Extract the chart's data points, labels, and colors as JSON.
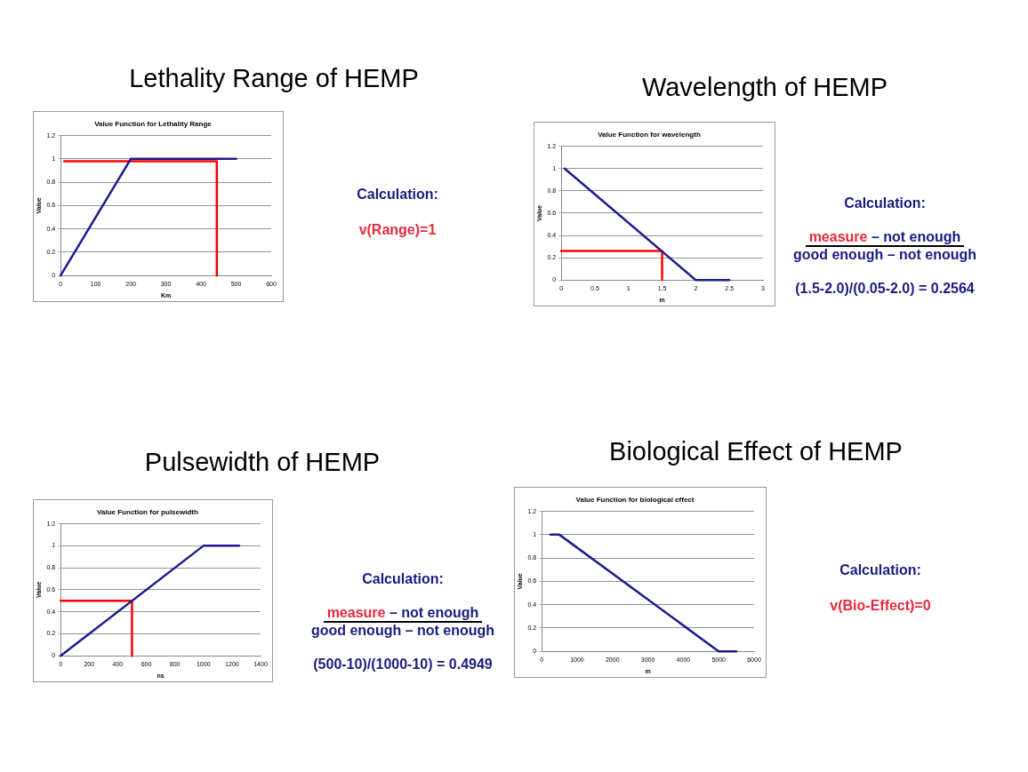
{
  "chart_data": [
    {
      "type": "line",
      "title": "Lethality Range of HEMP",
      "subtitle": "Value Function for Lethality Range",
      "xlabel": "Km",
      "ylabel": "Value",
      "xlim": [
        0,
        600
      ],
      "xticks": [
        0,
        100,
        200,
        300,
        400,
        500,
        600
      ],
      "ylim": [
        0,
        1.2
      ],
      "yticks": [
        0,
        0.2,
        0.4,
        0.6,
        0.8,
        1,
        1.2
      ],
      "grid": "y",
      "legend": false,
      "marker": "none",
      "series": [
        {
          "color": "#1c1c8c",
          "x": [
            0,
            200,
            500
          ],
          "values": [
            0,
            1,
            1
          ]
        },
        {
          "color": "#ff0000",
          "x": [
            10,
            445,
            445
          ],
          "values": [
            0.98,
            0.98,
            0
          ]
        }
      ],
      "annotations": [
        "Calculation:",
        "v(Range)=1"
      ]
    },
    {
      "type": "line",
      "title": "Wavelength of HEMP",
      "subtitle": "Value Function for wavelength",
      "xlabel": "m",
      "ylabel": "Value",
      "xlim": [
        0,
        3
      ],
      "xticks": [
        0,
        0.5,
        1,
        1.5,
        2,
        2.5,
        3
      ],
      "ylim": [
        0,
        1.2
      ],
      "yticks": [
        0,
        0.2,
        0.4,
        0.6,
        0.8,
        1,
        1.2
      ],
      "grid": "y",
      "legend": false,
      "marker": "none",
      "series": [
        {
          "color": "#1c1c8c",
          "x": [
            0.05,
            2,
            2.5
          ],
          "values": [
            1,
            0,
            0
          ]
        },
        {
          "color": "#ff0000",
          "x": [
            0,
            1.5,
            1.5
          ],
          "values": [
            0.26,
            0.26,
            0
          ]
        }
      ],
      "annotations": [
        "Calculation:",
        "measure",
        "– not enough",
        "good enough – not enough",
        "(1.5-2.0)/(0.05-2.0) = 0.2564"
      ]
    },
    {
      "type": "line",
      "title": "Pulsewidth of HEMP",
      "subtitle": "Value Function for pulsewidth",
      "xlabel": "ns",
      "ylabel": "Value",
      "xlim": [
        0,
        1400
      ],
      "xticks": [
        0,
        200,
        400,
        600,
        800,
        1000,
        1200,
        1400
      ],
      "ylim": [
        0,
        1.2
      ],
      "yticks": [
        0,
        0.2,
        0.4,
        0.6,
        0.8,
        1,
        1.2
      ],
      "grid": "y",
      "legend": false,
      "marker": "none",
      "series": [
        {
          "color": "#1c1c8c",
          "x": [
            0,
            1000,
            1250
          ],
          "values": [
            0,
            1,
            1
          ]
        },
        {
          "color": "#ff0000",
          "x": [
            0,
            500,
            500
          ],
          "values": [
            0.5,
            0.5,
            0
          ]
        }
      ],
      "annotations": [
        "Calculation:",
        "measure",
        "– not enough",
        "good enough – not enough",
        "(500-10)/(1000-10) = 0.4949"
      ]
    },
    {
      "type": "line",
      "title": "Biological Effect of HEMP",
      "subtitle": "Value Function for biological effect",
      "xlabel": "m",
      "ylabel": "Value",
      "xlim": [
        0,
        6000
      ],
      "xticks": [
        0,
        1000,
        2000,
        3000,
        4000,
        5000,
        6000
      ],
      "ylim": [
        0,
        1.2
      ],
      "yticks": [
        0,
        0.2,
        0.4,
        0.6,
        0.8,
        1,
        1.2
      ],
      "grid": "y",
      "legend": false,
      "marker": "none",
      "series": [
        {
          "color": "#1c1c8c",
          "x": [
            250,
            500,
            5000,
            5500
          ],
          "values": [
            1,
            1,
            0,
            0
          ]
        }
      ],
      "annotations": [
        "Calculation:",
        "v(Bio-Effect)=0"
      ]
    }
  ]
}
